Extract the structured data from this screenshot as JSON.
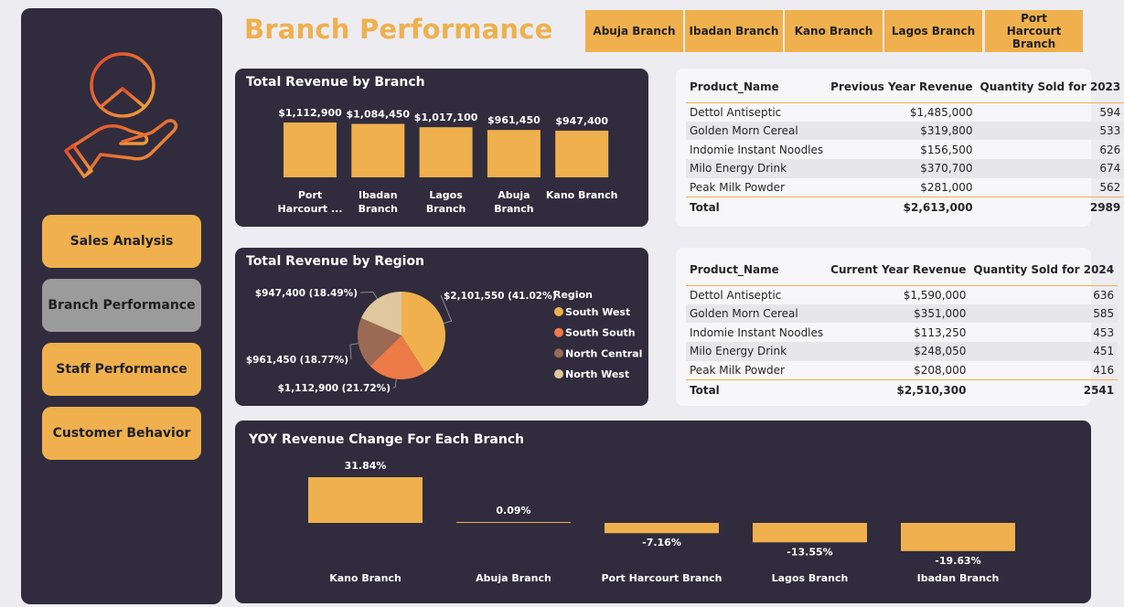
{
  "sidebar": {
    "nav": [
      {
        "label": "Sales Analysis",
        "active": false
      },
      {
        "label": "Branch Performance",
        "active": true
      },
      {
        "label": "Staff Performance",
        "active": false
      },
      {
        "label": "Customer Behavior",
        "active": false
      }
    ],
    "logo_icon": "peace-hand-icon"
  },
  "header": {
    "title": "Branch Performance"
  },
  "slicers": [
    "Abuja Branch",
    "Ibadan Branch",
    "Kano Branch",
    "Lagos Branch",
    "Port Harcourt Branch"
  ],
  "colors": {
    "accent": "#efb04d",
    "panel": "#302c3d",
    "south_south": "#ec7b47",
    "north_central": "#9b6a54",
    "north_west": "#e0c79d",
    "active_nav": "#9b9b9b"
  },
  "table_prev": {
    "headers": [
      "Product_Name",
      "Previous Year Revenue",
      "Quantity Sold for 2023"
    ],
    "rows": [
      [
        "Dettol Antiseptic",
        "$1,485,000",
        "594"
      ],
      [
        "Golden Morn Cereal",
        "$319,800",
        "533"
      ],
      [
        "Indomie Instant Noodles",
        "$156,500",
        "626"
      ],
      [
        "Milo Energy Drink",
        "$370,700",
        "674"
      ],
      [
        "Peak Milk Powder",
        "$281,000",
        "562"
      ]
    ],
    "total": [
      "Total",
      "$2,613,000",
      "2989"
    ]
  },
  "table_curr": {
    "headers": [
      "Product_Name",
      "Current Year Revenue",
      "Quantity Sold for 2024"
    ],
    "rows": [
      [
        "Dettol Antiseptic",
        "$1,590,000",
        "636"
      ],
      [
        "Golden Morn Cereal",
        "$351,000",
        "585"
      ],
      [
        "Indomie Instant Noodles",
        "$113,250",
        "453"
      ],
      [
        "Milo Energy Drink",
        "$248,050",
        "451"
      ],
      [
        "Peak Milk Powder",
        "$208,000",
        "416"
      ]
    ],
    "total": [
      "Total",
      "$2,510,300",
      "2541"
    ]
  },
  "chart_data": [
    {
      "id": "revenue_by_branch",
      "type": "bar",
      "title": "Total Revenue by Branch",
      "categories": [
        "Port Harcourt ...",
        "Ibadan Branch",
        "Lagos Branch",
        "Abuja Branch",
        "Kano Branch"
      ],
      "values": [
        1112900,
        1084450,
        1017100,
        961450,
        947400
      ],
      "labels": [
        "$1,112,900",
        "$1,084,450",
        "$1,017,100",
        "$961,450",
        "$947,400"
      ],
      "ylim": [
        0,
        1112900
      ]
    },
    {
      "id": "revenue_by_region",
      "type": "pie",
      "title": "Total Revenue by Region",
      "legend_title": "Region",
      "categories": [
        "South West",
        "South South",
        "North Central",
        "North West"
      ],
      "values": [
        2101550,
        1112900,
        961450,
        947400
      ],
      "labels": [
        "$2,101,550 (41.02%)",
        "$1,112,900 (21.72%)",
        "$961,450 (18.77%)",
        "$947,400 (18.49%)"
      ],
      "legend_position": "right"
    },
    {
      "id": "yoy_change",
      "type": "bar",
      "title": "YOY Revenue Change For Each Branch",
      "categories": [
        "Kano Branch",
        "Abuja Branch",
        "Port Harcourt Branch",
        "Lagos Branch",
        "Ibadan Branch"
      ],
      "values": [
        31.84,
        0.09,
        -7.16,
        -13.55,
        -19.63
      ],
      "labels": [
        "31.84%",
        "0.09%",
        "-7.16%",
        "-13.55%",
        "-19.63%"
      ]
    }
  ]
}
